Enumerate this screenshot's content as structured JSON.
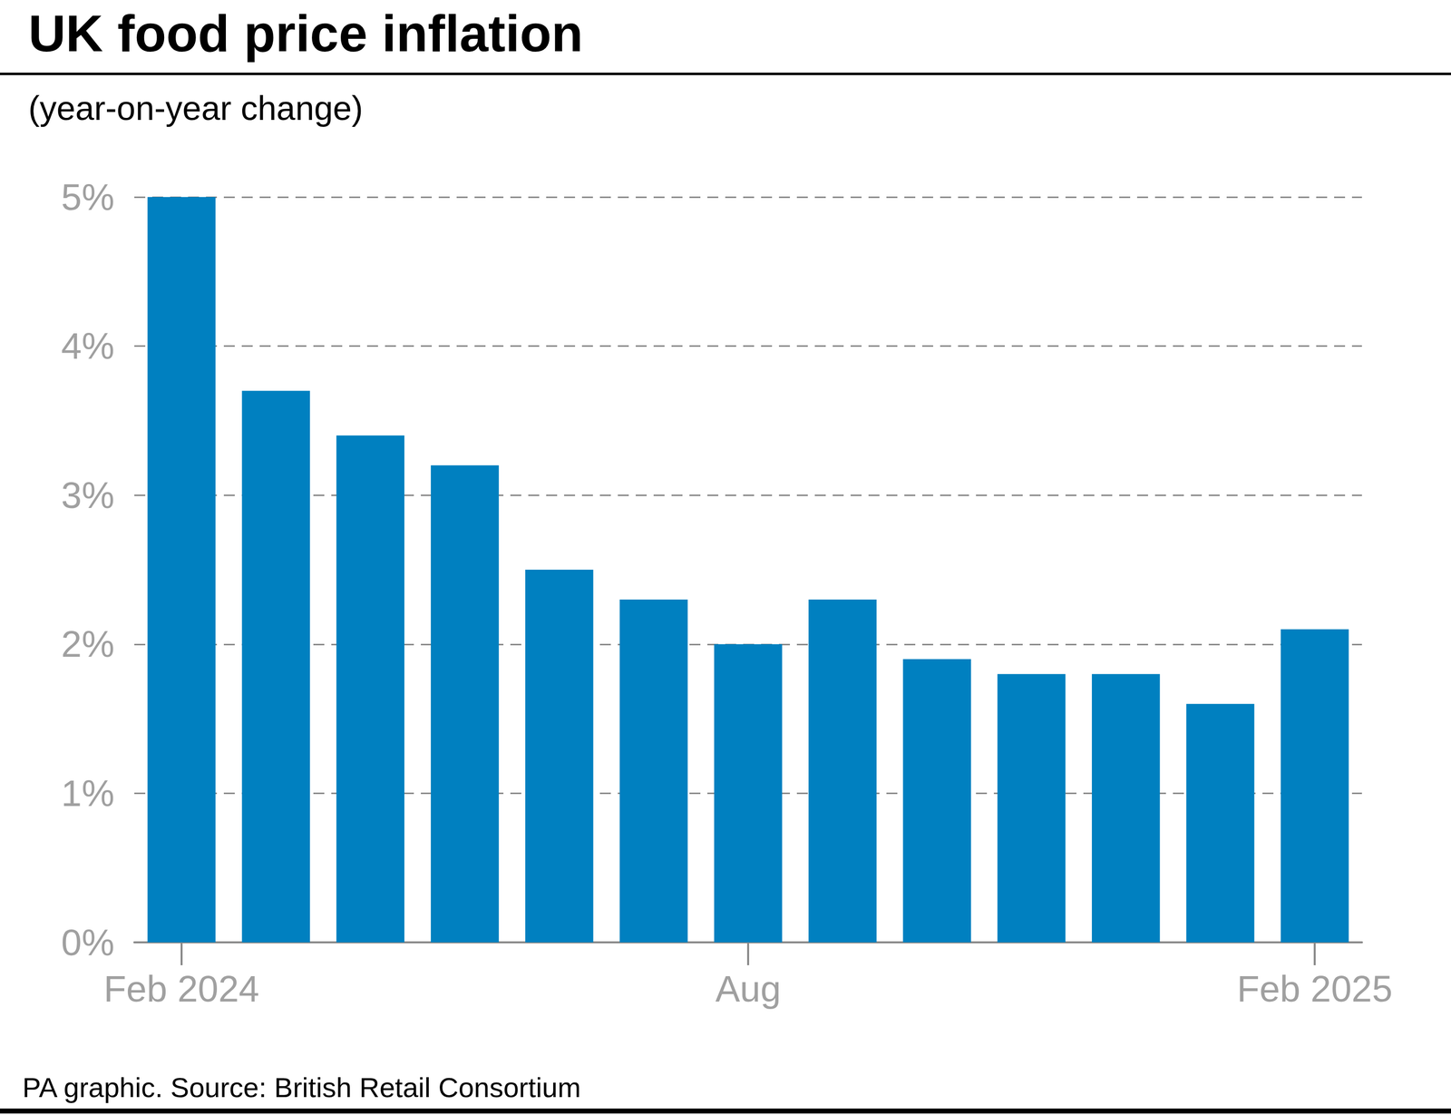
{
  "chart_data": {
    "type": "bar",
    "title": "UK food price inflation",
    "subtitle": "(year-on-year change)",
    "source": "PA graphic. Source: British Retail Consortium",
    "categories": [
      "Feb 2024",
      null,
      null,
      null,
      null,
      null,
      "Aug",
      null,
      null,
      null,
      null,
      null,
      "Feb 2025"
    ],
    "values": [
      5.0,
      3.7,
      3.4,
      3.2,
      2.5,
      2.3,
      2.0,
      2.3,
      1.9,
      1.8,
      1.8,
      1.6,
      2.1
    ],
    "color": "#0080c0",
    "ylim": [
      0,
      5
    ],
    "yticks": [
      {
        "value": 0,
        "label": "0%"
      },
      {
        "value": 1,
        "label": "1%"
      },
      {
        "value": 2,
        "label": "2%"
      },
      {
        "value": 3,
        "label": "3%"
      },
      {
        "value": 4,
        "label": "4%"
      },
      {
        "value": 5,
        "label": "5%"
      }
    ],
    "grid": true
  }
}
